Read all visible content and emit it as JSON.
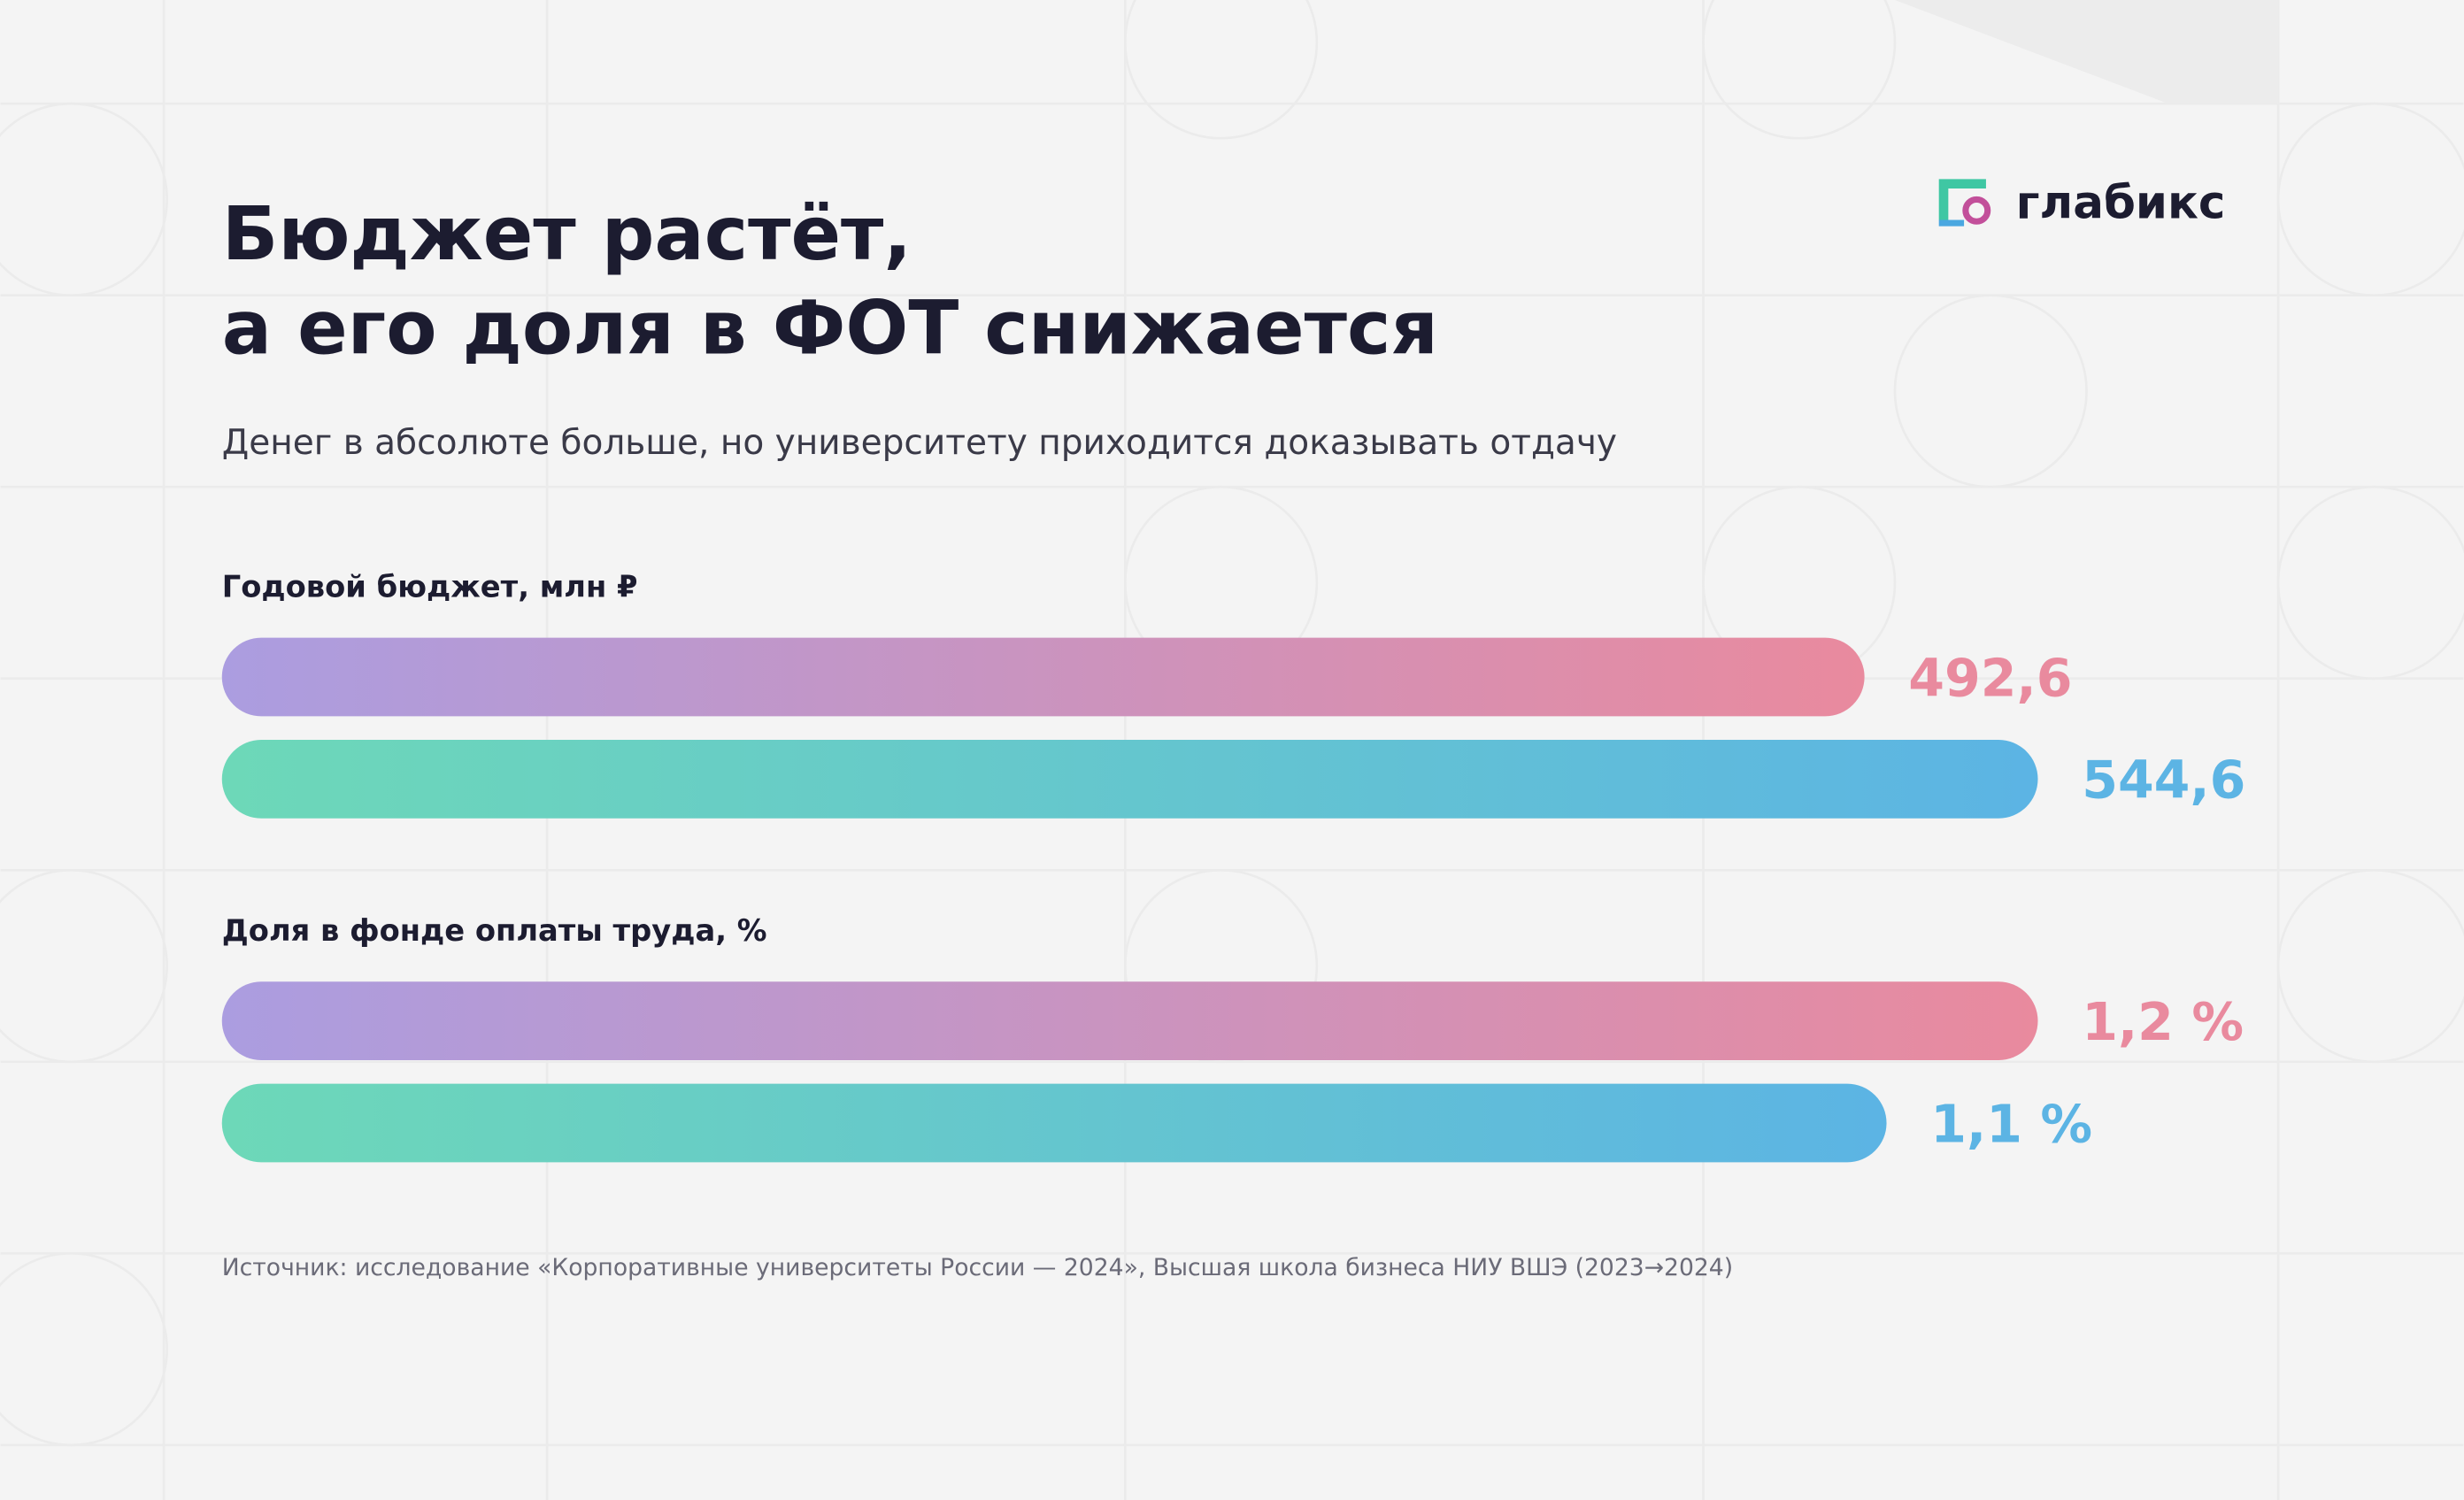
{
  "header": {
    "title": [
      "Бюджет растёт,",
      "а его доля в ФОТ снижается"
    ],
    "subtitle": "Денег в абсолюте больше, но университету приходится доказывать отдачу",
    "logo": "глабикс"
  },
  "chart_data": [
    {
      "type": "bar",
      "title": "Годовой бюджет, млн ₽",
      "values": [
        492.6,
        544.6
      ],
      "value_labels": [
        "492,6",
        "544,6"
      ],
      "colors": [
        [
          "#ab9de0",
          "#e98a9e"
        ],
        [
          "#6dd8b8",
          "#5cb4e4"
        ]
      ]
    },
    {
      "type": "bar",
      "title": "Доля в фонде оплаты труда, %",
      "values": [
        1.2,
        1.1
      ],
      "value_labels": [
        "1,2 %",
        "1,1 %"
      ],
      "colors": [
        [
          "#ab9de0",
          "#e98a9e"
        ],
        [
          "#6dd8b8",
          "#5cb4e4"
        ]
      ]
    }
  ],
  "footer": {
    "source": "Источник: исследование «Корпоративные университеты России — 2024», Высшая школа бизнеса НИУ ВШЭ (2023→2024)"
  }
}
